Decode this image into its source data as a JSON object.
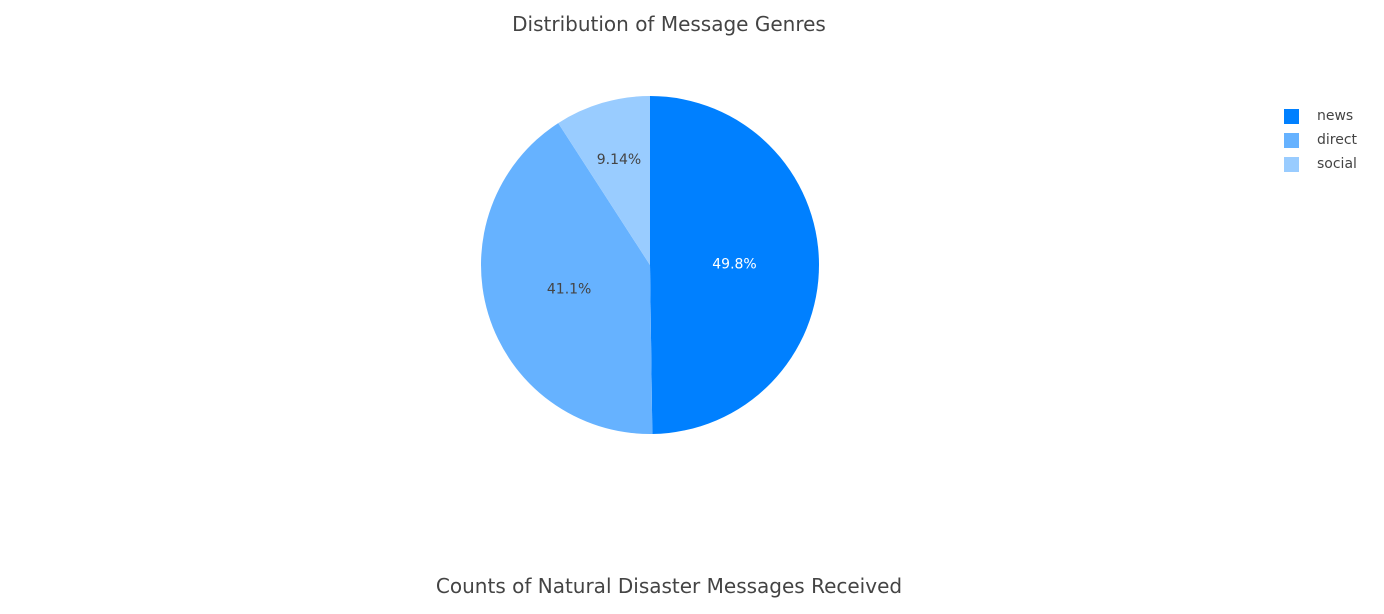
{
  "charts": {
    "genre_title": "Distribution of Message Genres",
    "counts_title": "Counts of Natural Disaster Messages Received"
  },
  "chart_data": [
    {
      "type": "pie",
      "title": "Distribution of Message Genres",
      "labels": [
        "news",
        "direct",
        "social"
      ],
      "values": [
        49.8,
        41.1,
        9.14
      ],
      "text_labels": [
        "49.8%",
        "41.1%",
        "9.14%"
      ],
      "colors": [
        "#0080ff",
        "#66b2ff",
        "#99ccff"
      ],
      "text_colors": [
        "#ffffff",
        "#444444",
        "#444444"
      ],
      "legend": "top-right"
    },
    {
      "type": "bar",
      "title": "Counts of Natural Disaster Messages Received"
    }
  ]
}
